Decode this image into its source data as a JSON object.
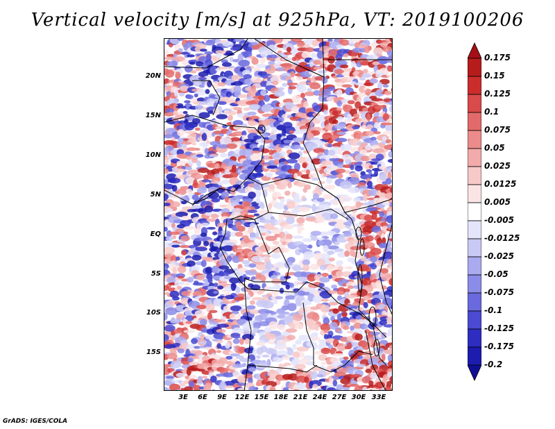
{
  "title": "Vertical velocity [m/s] at 925hPa, VT: 2019100206",
  "footer": "GrADS: IGES/COLA",
  "map": {
    "lat_labels": [
      "20N",
      "15N",
      "10N",
      "5N",
      "EQ",
      "5S",
      "10S",
      "15S"
    ],
    "lon_labels": [
      "3E",
      "6E",
      "9E",
      "12E",
      "15E",
      "18E",
      "21E",
      "24E",
      "27E",
      "30E",
      "33E"
    ],
    "lon_range": [
      0.5,
      35
    ],
    "lat_range": [
      -19.5,
      25
    ]
  },
  "colorbar": {
    "labels": [
      "0.175",
      "0.15",
      "0.125",
      "0.1",
      "0.075",
      "0.05",
      "0.025",
      "0.0125",
      "0.005",
      "-0.005",
      "-0.0125",
      "-0.025",
      "-0.05",
      "-0.075",
      "-0.1",
      "-0.125",
      "-0.175",
      "-0.2"
    ],
    "colors": [
      "#a50f15",
      "#b71c1c",
      "#cb2d2d",
      "#d94a4a",
      "#e36a6a",
      "#ec8b8b",
      "#f2aaaa",
      "#f7c9c9",
      "#fbe4e4",
      "#ffffff",
      "#e4e4fb",
      "#c9c9f5",
      "#aaaaf0",
      "#8b8be8",
      "#6a6ade",
      "#4a4ad2",
      "#2d2dc2",
      "#1c1cae",
      "#0f0f96"
    ]
  }
}
